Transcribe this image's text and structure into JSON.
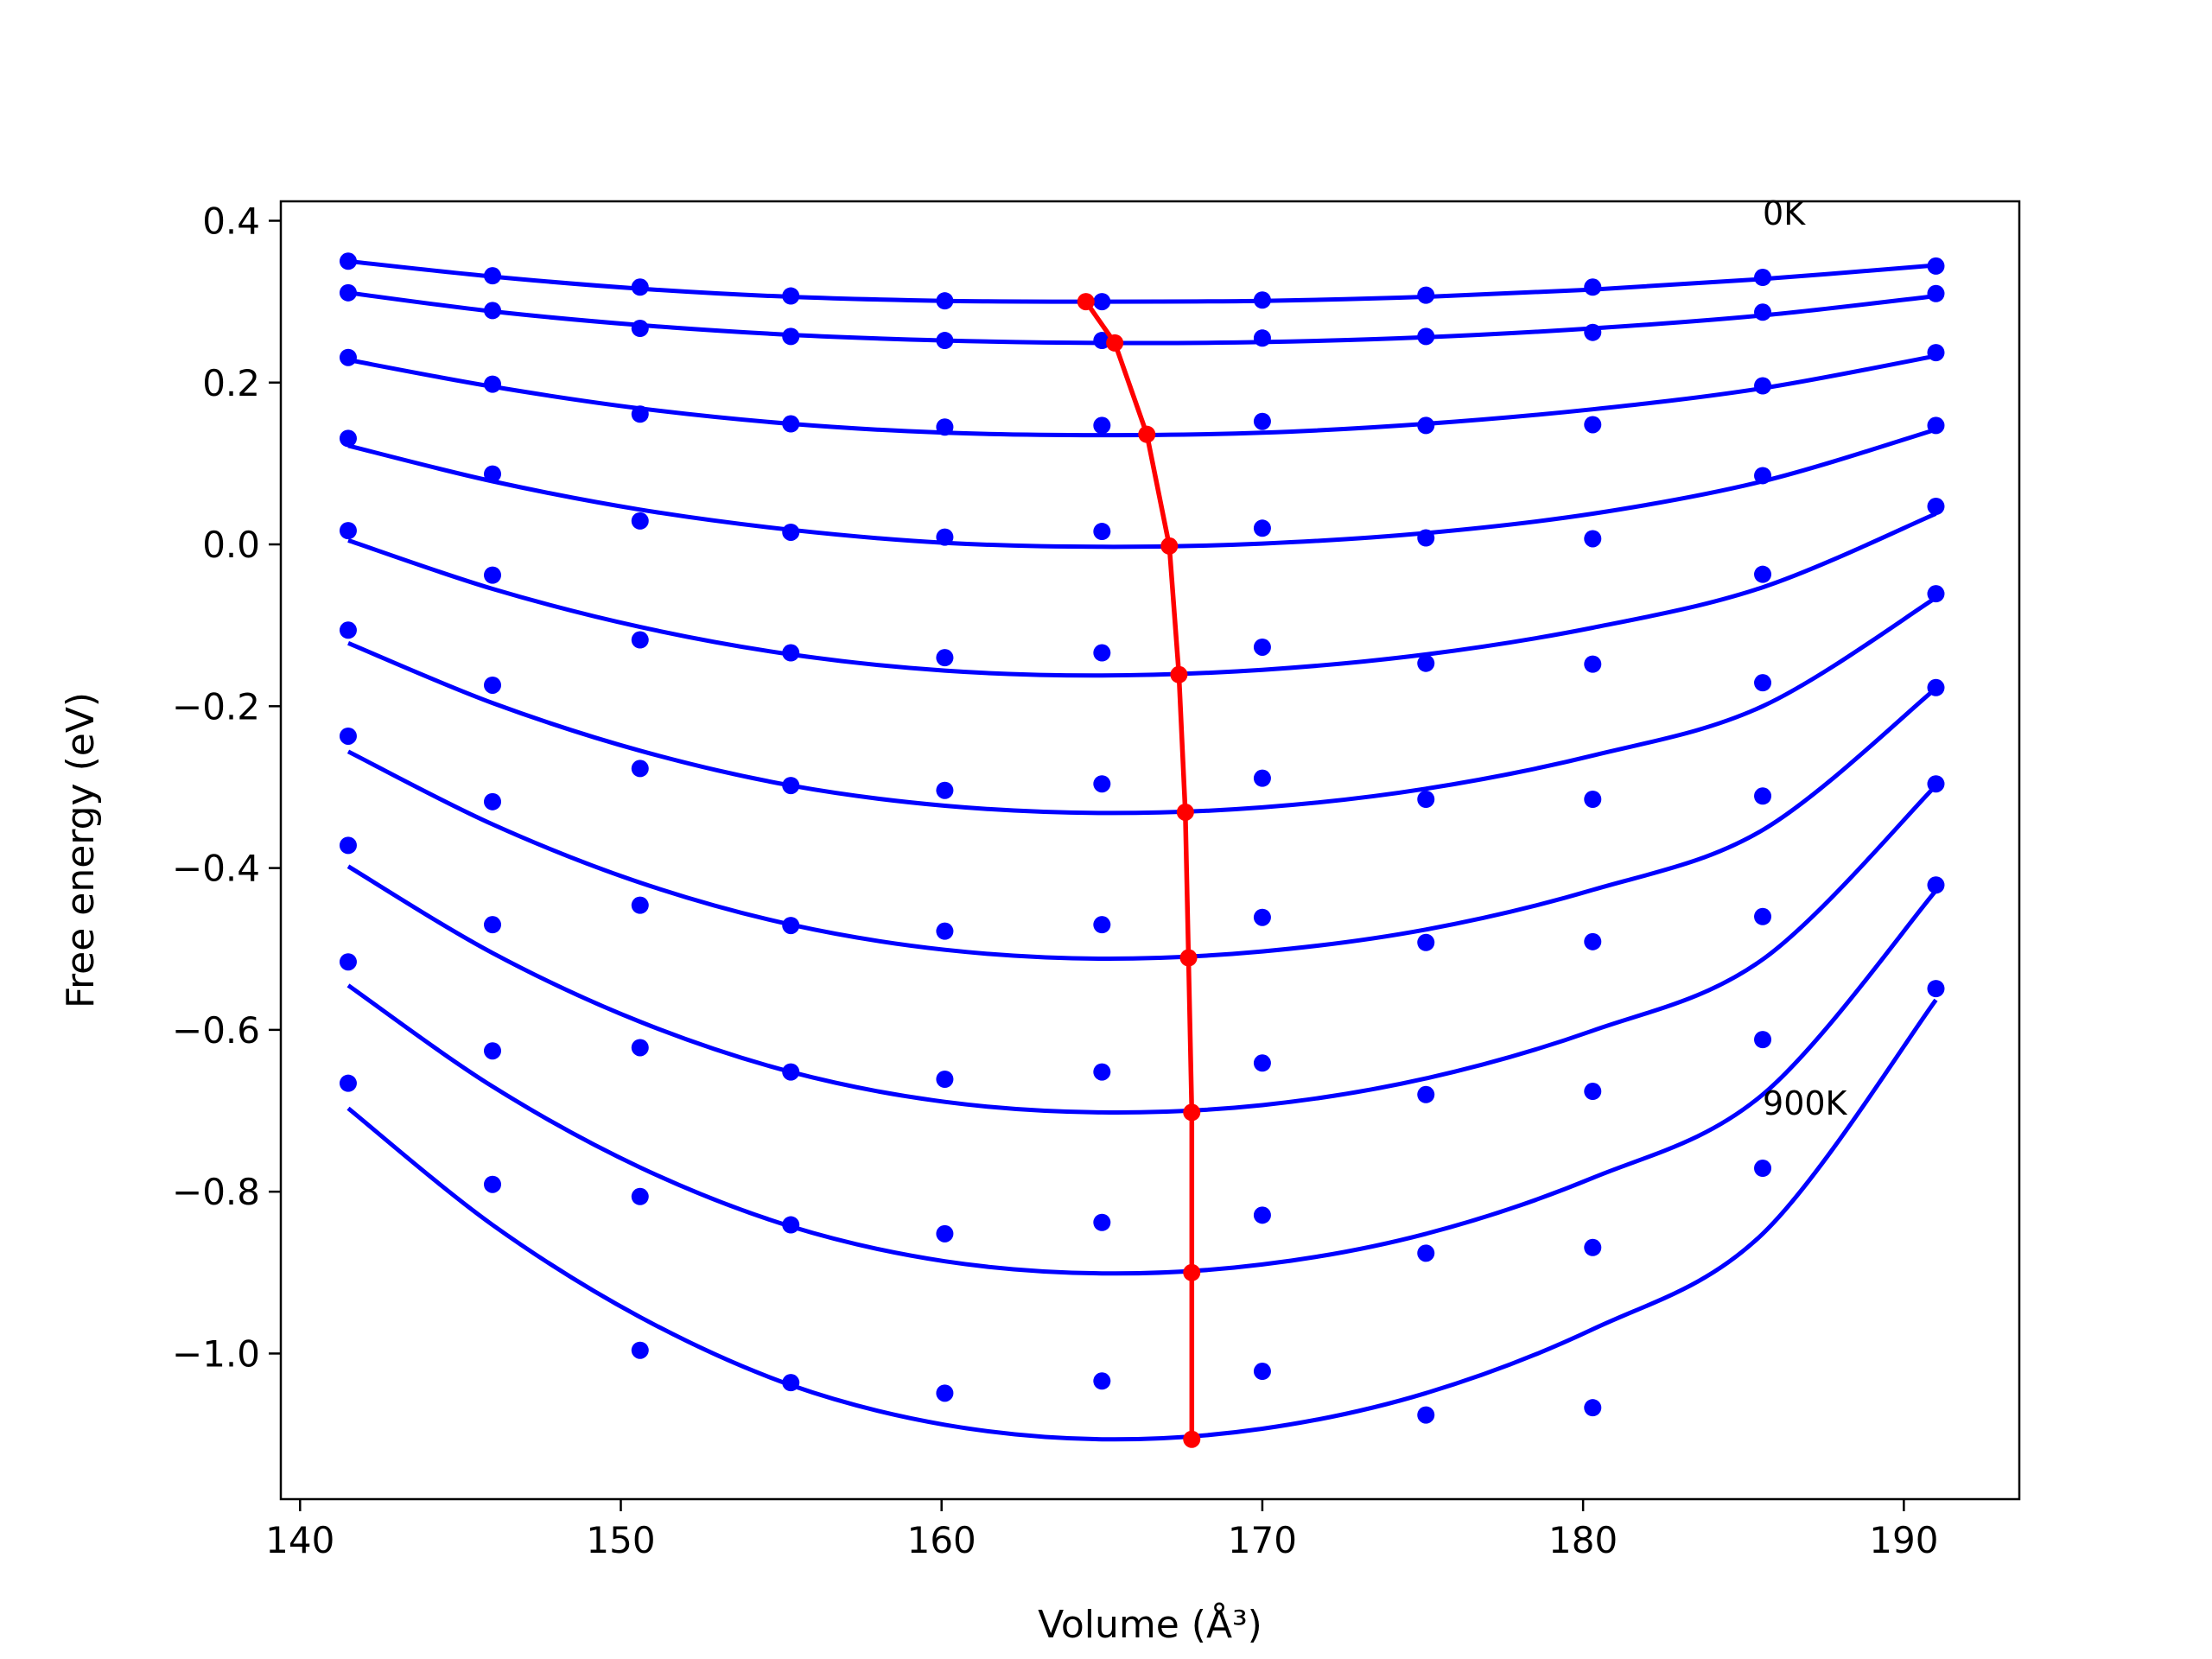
{
  "chart_data": {
    "type": "scatter",
    "xlabel": "Volume (Å³)",
    "ylabel": "Free energy (eV)",
    "xlim": [
      139.4,
      193.6
    ],
    "ylim": [
      -1.18,
      0.424
    ],
    "xticks": [
      "140",
      "150",
      "160",
      "170",
      "180",
      "190"
    ],
    "yticks": [
      "0.4",
      "0.2",
      "0.0",
      "−0.2",
      "−0.4",
      "−0.6",
      "−0.8",
      "−1.0"
    ],
    "xtick_values": [
      140,
      150,
      160,
      170,
      180,
      190
    ],
    "ytick_values": [
      0.4,
      0.2,
      0.0,
      -0.2,
      -0.4,
      -0.6,
      -0.8,
      -1.0
    ],
    "annotations": [
      {
        "text": "0K",
        "x": 185.6,
        "y": 0.41
      },
      {
        "text": "900K",
        "x": 185.6,
        "y": -0.69
      }
    ],
    "volumes": [
      141.5,
      146.0,
      150.6,
      155.3,
      160.1,
      165.0,
      170.0,
      175.1,
      180.3,
      185.6,
      191.0
    ],
    "series": [
      {
        "color": "#0000ff",
        "points": [
          0.35,
          0.332,
          0.318,
          0.307,
          0.301,
          0.3,
          0.302,
          0.308,
          0.318,
          0.33,
          0.344
        ],
        "fit": [
          0.35,
          0.331,
          0.316,
          0.306,
          0.301,
          0.3,
          0.301,
          0.306,
          0.315,
          0.328,
          0.345
        ]
      },
      {
        "color": "#0000ff",
        "points": [
          0.311,
          0.289,
          0.267,
          0.257,
          0.252,
          0.252,
          0.255,
          0.257,
          0.262,
          0.287,
          0.31
        ],
        "fit": [
          0.311,
          0.288,
          0.271,
          0.259,
          0.252,
          0.249,
          0.25,
          0.256,
          0.267,
          0.283,
          0.307
        ]
      },
      {
        "color": "#0000ff",
        "points": [
          0.231,
          0.198,
          0.161,
          0.149,
          0.145,
          0.147,
          0.152,
          0.147,
          0.148,
          0.196,
          0.237
        ],
        "fit": [
          0.228,
          0.195,
          0.168,
          0.149,
          0.138,
          0.135,
          0.138,
          0.149,
          0.167,
          0.193,
          0.233
        ]
      },
      {
        "color": "#0000ff",
        "points": [
          0.131,
          0.087,
          0.029,
          0.015,
          0.009,
          0.016,
          0.02,
          0.008,
          0.007,
          0.085,
          0.147
        ],
        "fit": [
          0.122,
          0.078,
          0.043,
          0.018,
          0.002,
          -0.003,
          0.001,
          0.014,
          0.038,
          0.078,
          0.142
        ]
      },
      {
        "color": "#0000ff",
        "points": [
          0.017,
          -0.038,
          -0.118,
          -0.134,
          -0.14,
          -0.134,
          -0.127,
          -0.147,
          -0.148,
          -0.037,
          0.047
        ],
        "fit": [
          0.005,
          -0.055,
          -0.102,
          -0.136,
          -0.156,
          -0.162,
          -0.155,
          -0.136,
          -0.103,
          -0.053,
          0.038
        ]
      },
      {
        "color": "#0000ff",
        "points": [
          -0.106,
          -0.174,
          -0.277,
          -0.298,
          -0.304,
          -0.296,
          -0.289,
          -0.315,
          -0.315,
          -0.171,
          -0.061
        ],
        "fit": [
          -0.122,
          -0.196,
          -0.255,
          -0.298,
          -0.323,
          -0.332,
          -0.325,
          -0.302,
          -0.261,
          -0.2,
          -0.066
        ]
      },
      {
        "color": "#0000ff",
        "points": [
          -0.237,
          -0.318,
          -0.446,
          -0.471,
          -0.478,
          -0.47,
          -0.461,
          -0.492,
          -0.491,
          -0.311,
          -0.177
        ],
        "fit": [
          -0.256,
          -0.346,
          -0.418,
          -0.47,
          -0.501,
          -0.512,
          -0.503,
          -0.476,
          -0.427,
          -0.353,
          -0.178
        ]
      },
      {
        "color": "#0000ff",
        "points": [
          -0.372,
          -0.47,
          -0.622,
          -0.652,
          -0.661,
          -0.652,
          -0.641,
          -0.68,
          -0.676,
          -0.46,
          -0.296
        ],
        "fit": [
          -0.398,
          -0.505,
          -0.59,
          -0.652,
          -0.689,
          -0.702,
          -0.693,
          -0.66,
          -0.601,
          -0.513,
          -0.298
        ]
      },
      {
        "color": "#0000ff",
        "points": [
          -0.516,
          -0.626,
          -0.806,
          -0.841,
          -0.852,
          -0.838,
          -0.829,
          -0.876,
          -0.869,
          -0.612,
          -0.421
        ],
        "fit": [
          -0.545,
          -0.67,
          -0.77,
          -0.843,
          -0.886,
          -0.901,
          -0.89,
          -0.852,
          -0.783,
          -0.68,
          -0.428
        ]
      },
      {
        "color": "#0000ff",
        "points": [
          -0.666,
          -0.791,
          -0.996,
          -1.036,
          -1.049,
          -1.034,
          -1.022,
          -1.076,
          -1.067,
          -0.771,
          -0.549
        ],
        "fit": [
          -0.697,
          -0.841,
          -0.955,
          -1.039,
          -1.088,
          -1.106,
          -1.093,
          -1.049,
          -0.97,
          -0.852,
          -0.563
        ]
      }
    ],
    "minimum_path": {
      "color": "#ff0000",
      "x": [
        164.5,
        165.4,
        166.4,
        167.1,
        167.4,
        167.6,
        167.7,
        167.8,
        167.8,
        167.8
      ],
      "y": [
        0.3,
        0.249,
        0.136,
        -0.002,
        -0.161,
        -0.331,
        -0.511,
        -0.702,
        -0.9,
        -1.106
      ]
    }
  }
}
